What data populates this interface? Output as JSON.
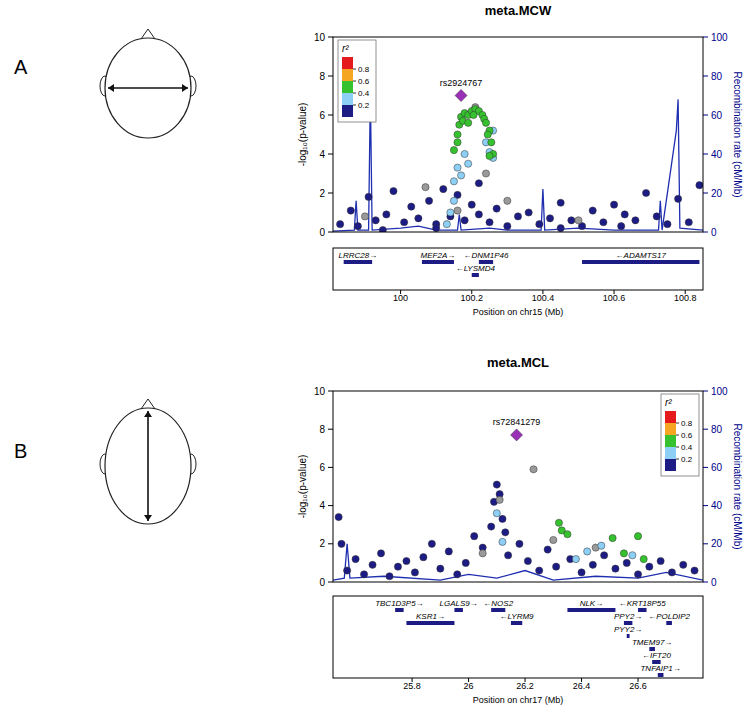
{
  "chart_data": [
    {
      "type": "scatter",
      "panel_label": "A",
      "title": "meta.MCW",
      "x_label": "Position on chr15 (Mb)",
      "y_label": "-log₁₀(p-value)",
      "y2_label": "Recombination rate (cM/Mb)",
      "xlim": [
        99.81,
        100.85
      ],
      "xticks": [
        100,
        100.2,
        100.4,
        100.6,
        100.8
      ],
      "ylim": [
        0,
        10
      ],
      "yticks": [
        0,
        2,
        4,
        6,
        8,
        10
      ],
      "y2lim": [
        0,
        100
      ],
      "y2ticks": [
        0,
        20,
        40,
        60,
        80,
        100
      ],
      "legend": "top-left",
      "legend_scale": {
        "title": "r²",
        "lim": [
          0,
          1
        ],
        "colors": [
          "#e41a1c",
          "#f5a623",
          "#36c22e",
          "#8ecff5",
          "#1c1c84"
        ],
        "ticks": [
          0.8,
          0.6,
          0.4,
          0.2
        ]
      },
      "series": [
        {
          "type": "scatter",
          "marker": "circle",
          "color": "#1c1c84",
          "x": [
            99.83,
            99.86,
            99.88,
            99.91,
            99.93,
            99.96,
            99.98,
            100.01,
            100.03,
            100.05,
            100.08,
            100.1,
            100.12,
            100.14,
            100.16,
            100.18,
            100.2,
            100.22,
            100.25,
            100.27,
            100.3,
            100.33,
            100.36,
            100.39,
            100.42,
            100.45,
            100.48,
            100.51,
            100.54,
            100.57,
            100.6,
            100.63,
            100.66,
            100.69,
            100.72,
            100.75,
            100.78,
            100.81,
            100.84,
            100.1,
            99.95,
            100.45,
            100.62,
            100.22
          ],
          "values": [
            0.4,
            1.1,
            0.3,
            1.8,
            0.6,
            0.9,
            2.1,
            0.5,
            1.3,
            0.7,
            1.6,
            0.4,
            2.2,
            0.8,
            1.9,
            0.6,
            1.4,
            0.9,
            0.5,
            1.2,
            0.3,
            0.8,
            1.0,
            0.4,
            0.7,
            1.5,
            0.6,
            0.3,
            1.1,
            0.5,
            1.4,
            0.9,
            0.6,
            2.0,
            0.8,
            0.4,
            1.7,
            0.5,
            2.4,
            0.2,
            0.1,
            0.2,
            0.3,
            2.5
          ]
        },
        {
          "type": "scatter",
          "marker": "circle",
          "color": "#9a9a9a",
          "x": [
            100.07,
            100.16,
            100.21,
            100.24,
            100.3,
            99.9,
            100.5
          ],
          "values": [
            2.3,
            1.1,
            6.4,
            3.0,
            1.6,
            0.8,
            0.6
          ]
        },
        {
          "type": "scatter",
          "marker": "circle",
          "color": "#8ecff5",
          "x": [
            100.13,
            100.14,
            100.15,
            100.15,
            100.16,
            100.17,
            100.18,
            100.19,
            100.24,
            100.25,
            100.26,
            100.26
          ],
          "values": [
            0.4,
            1.0,
            1.6,
            2.6,
            3.3,
            2.9,
            4.0,
            3.5,
            4.6,
            4.1,
            3.8,
            5.2
          ]
        },
        {
          "type": "scatter",
          "marker": "circle",
          "color": "#36c22e",
          "x": [
            100.15,
            100.16,
            100.165,
            100.17,
            100.18,
            100.19,
            100.2,
            100.21,
            100.22,
            100.23,
            100.235,
            100.24,
            100.25,
            100.255,
            100.26,
            100.16,
            100.175,
            100.19,
            100.205,
            100.245,
            100.25
          ],
          "values": [
            4.2,
            5.0,
            5.5,
            5.9,
            6.1,
            6.0,
            6.2,
            6.3,
            6.2,
            6.0,
            5.8,
            5.6,
            5.2,
            4.6,
            4.0,
            4.6,
            5.7,
            5.6,
            6.0,
            5.0,
            3.9
          ]
        },
        {
          "type": "scatter",
          "marker": "diamond",
          "color": "#9b30b8",
          "annotation": "rs2924767",
          "x": [
            100.17
          ],
          "values": [
            7.0
          ]
        },
        {
          "type": "line",
          "axis": "y2",
          "color": "#1f2fb0",
          "x": [
            99.81,
            99.87,
            99.875,
            99.88,
            99.91,
            99.915,
            99.92,
            100.0,
            100.05,
            100.1,
            100.16,
            100.165,
            100.17,
            100.25,
            100.3,
            100.395,
            100.4,
            100.405,
            100.5,
            100.6,
            100.725,
            100.73,
            100.735,
            100.775,
            100.78,
            100.785,
            100.85
          ],
          "values": [
            0.5,
            1,
            16,
            1,
            1,
            71,
            1,
            2,
            3,
            1,
            1,
            9,
            1,
            2,
            1,
            1,
            22,
            1,
            2,
            1,
            1,
            16,
            1,
            52,
            68,
            2,
            1
          ]
        }
      ],
      "genes": [
        {
          "label": "LRRC28→",
          "start": 99.84,
          "end": 99.92
        },
        {
          "label": "MEF2A→",
          "start": 100.06,
          "end": 100.15
        },
        {
          "label": "←DNM1P46",
          "start": 100.22,
          "end": 100.26
        },
        {
          "label": "←LYSMD4",
          "start": 100.2,
          "end": 100.22
        },
        {
          "label": "←ADAMTS17",
          "start": 100.51,
          "end": 100.84
        }
      ]
    },
    {
      "type": "scatter",
      "panel_label": "B",
      "title": "meta.MCL",
      "x_label": "Position on chr17 (Mb)",
      "y_label": "-log₁₀(p-value)",
      "y2_label": "Recombination rate (cM/Mb)",
      "xlim": [
        25.52,
        26.83
      ],
      "xticks": [
        25.8,
        26,
        26.2,
        26.4,
        26.6
      ],
      "ylim": [
        0,
        10
      ],
      "yticks": [
        0,
        2,
        4,
        6,
        8,
        10
      ],
      "y2lim": [
        0,
        100
      ],
      "y2ticks": [
        0,
        20,
        40,
        60,
        80,
        100
      ],
      "legend": "top-right",
      "legend_scale": {
        "title": "r²",
        "lim": [
          0,
          1
        ],
        "colors": [
          "#e41a1c",
          "#f5a623",
          "#36c22e",
          "#8ecff5",
          "#1c1c84"
        ],
        "ticks": [
          0.8,
          0.6,
          0.4,
          0.2
        ]
      },
      "series": [
        {
          "type": "scatter",
          "marker": "circle",
          "color": "#1c1c84",
          "x": [
            25.54,
            25.57,
            25.6,
            25.63,
            25.66,
            25.69,
            25.72,
            25.75,
            25.78,
            25.81,
            25.84,
            25.87,
            25.9,
            25.93,
            25.96,
            25.99,
            26.02,
            26.05,
            26.08,
            26.09,
            26.1,
            26.11,
            26.12,
            26.14,
            26.18,
            26.21,
            26.25,
            26.28,
            26.31,
            26.36,
            26.4,
            26.44,
            26.48,
            26.52,
            26.56,
            26.6,
            26.64,
            26.68,
            26.72,
            26.76,
            26.8,
            25.55,
            26.13
          ],
          "values": [
            3.4,
            0.6,
            1.2,
            0.4,
            0.9,
            1.5,
            0.3,
            0.8,
            1.1,
            0.5,
            1.3,
            2.0,
            0.7,
            1.6,
            0.4,
            1.0,
            2.4,
            1.8,
            2.9,
            4.2,
            5.1,
            4.6,
            3.3,
            1.4,
            2.0,
            1.1,
            0.6,
            1.7,
            0.8,
            1.2,
            0.5,
            0.9,
            1.4,
            0.7,
            1.0,
            0.4,
            0.8,
            1.1,
            0.5,
            0.9,
            0.6,
            2.0,
            2.6
          ]
        },
        {
          "type": "scatter",
          "marker": "circle",
          "color": "#9a9a9a",
          "x": [
            26.11,
            26.23,
            26.3,
            26.45,
            26.05
          ],
          "values": [
            4.3,
            5.9,
            2.2,
            1.8,
            1.5
          ]
        },
        {
          "type": "scatter",
          "marker": "circle",
          "color": "#8ecff5",
          "x": [
            26.1,
            26.12,
            26.38,
            26.42,
            26.47,
            26.58
          ],
          "values": [
            3.6,
            2.1,
            1.2,
            1.6,
            1.9,
            1.4
          ]
        },
        {
          "type": "scatter",
          "marker": "circle",
          "color": "#36c22e",
          "x": [
            26.32,
            26.33,
            26.35,
            26.51,
            26.55,
            26.6,
            26.62
          ],
          "values": [
            3.1,
            2.7,
            2.5,
            2.3,
            1.5,
            2.4,
            1.2
          ]
        },
        {
          "type": "scatter",
          "marker": "diamond",
          "color": "#9b30b8",
          "annotation": "rs72841279",
          "x": [
            26.17
          ],
          "values": [
            7.7
          ]
        },
        {
          "type": "line",
          "axis": "y2",
          "color": "#1f2fb0",
          "x": [
            25.52,
            25.56,
            25.57,
            25.58,
            25.7,
            25.9,
            26.0,
            26.1,
            26.2,
            26.3,
            26.45,
            26.6,
            26.7,
            26.83
          ],
          "values": [
            1,
            2,
            20,
            2,
            3,
            1,
            4,
            2,
            6,
            1,
            3,
            2,
            5,
            1
          ]
        }
      ],
      "genes": [
        {
          "label": "TBC1D3P5→",
          "start": 25.74,
          "end": 25.77
        },
        {
          "label": "KSR1→",
          "start": 25.78,
          "end": 25.95
        },
        {
          "label": "LGALS9→",
          "start": 25.95,
          "end": 25.98
        },
        {
          "label": "←NOS2",
          "start": 26.08,
          "end": 26.13
        },
        {
          "label": "←LYRM9",
          "start": 26.15,
          "end": 26.19
        },
        {
          "label": "NLK→",
          "start": 26.35,
          "end": 26.52
        },
        {
          "label": "PPY2→",
          "start": 26.55,
          "end": 26.58
        },
        {
          "label": "PYY2→",
          "start": 26.56,
          "end": 26.57
        },
        {
          "label": "←KRT18P55",
          "start": 26.6,
          "end": 26.63
        },
        {
          "label": "TMEM97→",
          "start": 26.64,
          "end": 26.66
        },
        {
          "label": "←IFT20",
          "start": 26.65,
          "end": 26.68
        },
        {
          "label": "TNFAIP1→",
          "start": 26.67,
          "end": 26.69
        },
        {
          "label": "←POLDIP2",
          "start": 26.7,
          "end": 26.72
        }
      ]
    }
  ]
}
